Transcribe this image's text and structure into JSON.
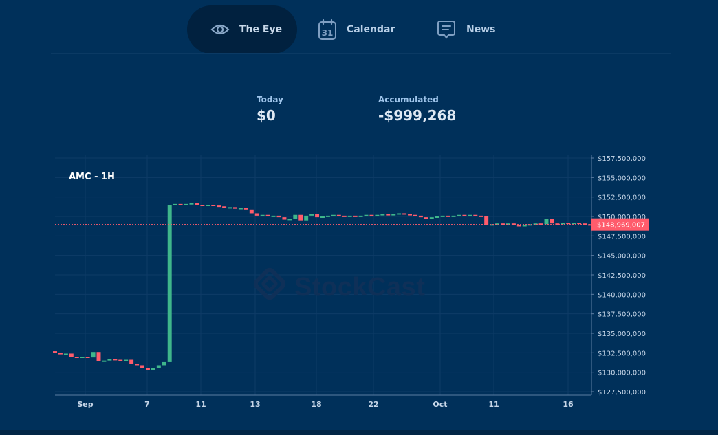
{
  "nav": {
    "tabs": [
      {
        "label": "The Eye",
        "icon": "eye-icon",
        "active": true
      },
      {
        "label": "Calendar",
        "icon": "calendar-icon",
        "icon_text": "31",
        "active": false
      },
      {
        "label": "News",
        "icon": "news-icon",
        "active": false
      }
    ]
  },
  "stats": {
    "today_label": "Today",
    "today_value": "$0",
    "accumulated_label": "Accumulated",
    "accumulated_value": "-$999,268"
  },
  "chart": {
    "symbol_label": "AMC - 1H",
    "watermark": "StockCast",
    "current_price_label": "$148,969,007"
  },
  "colors": {
    "background": "#00305a",
    "up": "#3fb68b",
    "down": "#ff5c6c",
    "price_tag": "#ff5c6c"
  },
  "chart_data": {
    "type": "candlestick",
    "title": "AMC - 1H",
    "y_ticks": [
      "$157,500,000",
      "$155,000,000",
      "$152,500,000",
      "$150,000,000",
      "$147,500,000",
      "$145,000,000",
      "$142,500,000",
      "$140,000,000",
      "$137,500,000",
      "$135,000,000",
      "$132,500,000",
      "$130,000,000",
      "$127,500,000"
    ],
    "y_tick_values": [
      157500000,
      155000000,
      152500000,
      150000000,
      147500000,
      145000000,
      142500000,
      140000000,
      137500000,
      135000000,
      132500000,
      130000000,
      127500000
    ],
    "x_ticks": [
      "Sep",
      "7",
      "11",
      "13",
      "18",
      "22",
      "Oct",
      "11",
      "16"
    ],
    "ylim": [
      127000000,
      157700000
    ],
    "last_price": 148969007,
    "grid": true,
    "candles": [
      {
        "o": 132700000,
        "c": 132500000
      },
      {
        "o": 132500000,
        "c": 132300000
      },
      {
        "o": 132300000,
        "c": 132400000
      },
      {
        "o": 132400000,
        "c": 132000000
      },
      {
        "o": 132000000,
        "c": 131900000
      },
      {
        "o": 131900000,
        "c": 132000000
      },
      {
        "o": 132000000,
        "c": 131900000
      },
      {
        "o": 131900000,
        "c": 132600000
      },
      {
        "o": 132600000,
        "c": 131400000
      },
      {
        "o": 131400000,
        "c": 131500000
      },
      {
        "o": 131500000,
        "c": 131700000
      },
      {
        "o": 131700000,
        "c": 131600000
      },
      {
        "o": 131600000,
        "c": 131500000
      },
      {
        "o": 131500000,
        "c": 131600000
      },
      {
        "o": 131600000,
        "c": 131100000
      },
      {
        "o": 131100000,
        "c": 130900000
      },
      {
        "o": 130900000,
        "c": 130500000
      },
      {
        "o": 130500000,
        "c": 130400000
      },
      {
        "o": 130400000,
        "c": 130500000
      },
      {
        "o": 130500000,
        "c": 130900000
      },
      {
        "o": 130900000,
        "c": 131300000
      },
      {
        "o": 131300000,
        "c": 151500000
      },
      {
        "o": 151500000,
        "c": 151600000
      },
      {
        "o": 151600000,
        "c": 151500000
      },
      {
        "o": 151500000,
        "c": 151600000
      },
      {
        "o": 151600000,
        "c": 151700000
      },
      {
        "o": 151700000,
        "c": 151500000
      },
      {
        "o": 151500000,
        "c": 151400000
      },
      {
        "o": 151400000,
        "c": 151500000
      },
      {
        "o": 151500000,
        "c": 151400000
      },
      {
        "o": 151400000,
        "c": 151300000
      },
      {
        "o": 151300000,
        "c": 151100000
      },
      {
        "o": 151100000,
        "c": 151200000
      },
      {
        "o": 151200000,
        "c": 151000000
      },
      {
        "o": 151000000,
        "c": 151100000
      },
      {
        "o": 151100000,
        "c": 150900000
      },
      {
        "o": 150900000,
        "c": 150400000
      },
      {
        "o": 150400000,
        "c": 150100000
      },
      {
        "o": 150100000,
        "c": 150200000
      },
      {
        "o": 150200000,
        "c": 150000000
      },
      {
        "o": 150000000,
        "c": 150100000
      },
      {
        "o": 150100000,
        "c": 149900000
      },
      {
        "o": 149900000,
        "c": 149600000
      },
      {
        "o": 149600000,
        "c": 149700000
      },
      {
        "o": 149700000,
        "c": 150200000
      },
      {
        "o": 150200000,
        "c": 149500000
      },
      {
        "o": 149500000,
        "c": 150100000
      },
      {
        "o": 150100000,
        "c": 150300000
      },
      {
        "o": 150300000,
        "c": 149900000
      },
      {
        "o": 149900000,
        "c": 150000000
      },
      {
        "o": 150000000,
        "c": 150100000
      },
      {
        "o": 150100000,
        "c": 150200000
      },
      {
        "o": 150200000,
        "c": 150100000
      },
      {
        "o": 150100000,
        "c": 150000000
      },
      {
        "o": 150000000,
        "c": 150100000
      },
      {
        "o": 150100000,
        "c": 150000000
      },
      {
        "o": 150000000,
        "c": 150100000
      },
      {
        "o": 150100000,
        "c": 150200000
      },
      {
        "o": 150200000,
        "c": 150100000
      },
      {
        "o": 150100000,
        "c": 150200000
      },
      {
        "o": 150200000,
        "c": 150300000
      },
      {
        "o": 150300000,
        "c": 150200000
      },
      {
        "o": 150200000,
        "c": 150300000
      },
      {
        "o": 150300000,
        "c": 150400000
      },
      {
        "o": 150400000,
        "c": 150300000
      },
      {
        "o": 150300000,
        "c": 150200000
      },
      {
        "o": 150200000,
        "c": 150100000
      },
      {
        "o": 150100000,
        "c": 149900000
      },
      {
        "o": 149900000,
        "c": 149800000
      },
      {
        "o": 149800000,
        "c": 149900000
      },
      {
        "o": 149900000,
        "c": 150000000
      },
      {
        "o": 150000000,
        "c": 150100000
      },
      {
        "o": 150100000,
        "c": 150000000
      },
      {
        "o": 150000000,
        "c": 150100000
      },
      {
        "o": 150100000,
        "c": 150200000
      },
      {
        "o": 150200000,
        "c": 150100000
      },
      {
        "o": 150100000,
        "c": 150200000
      },
      {
        "o": 150200000,
        "c": 150100000
      },
      {
        "o": 150100000,
        "c": 150000000
      },
      {
        "o": 150000000,
        "c": 148900000
      },
      {
        "o": 148900000,
        "c": 149000000
      },
      {
        "o": 149000000,
        "c": 149100000
      },
      {
        "o": 149100000,
        "c": 149000000
      },
      {
        "o": 149000000,
        "c": 149100000
      },
      {
        "o": 149100000,
        "c": 148900000
      },
      {
        "o": 148900000,
        "c": 148800000
      },
      {
        "o": 148800000,
        "c": 148900000
      },
      {
        "o": 148900000,
        "c": 149000000
      },
      {
        "o": 149000000,
        "c": 149100000
      },
      {
        "o": 149100000,
        "c": 149000000
      },
      {
        "o": 149000000,
        "c": 149700000
      },
      {
        "o": 149700000,
        "c": 149100000
      },
      {
        "o": 149100000,
        "c": 149000000
      },
      {
        "o": 149000000,
        "c": 149200000
      },
      {
        "o": 149200000,
        "c": 149100000
      },
      {
        "o": 149100000,
        "c": 149200000
      },
      {
        "o": 149200000,
        "c": 149100000
      },
      {
        "o": 149100000,
        "c": 149000000
      },
      {
        "o": 149000000,
        "c": 148969007
      }
    ]
  }
}
